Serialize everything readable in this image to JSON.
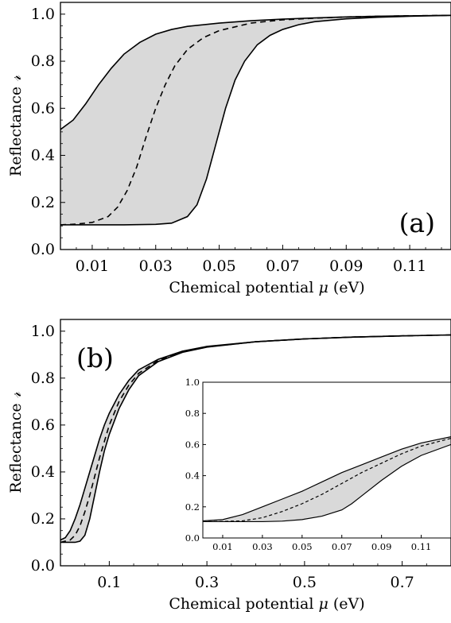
{
  "chart_data": [
    {
      "type": "area",
      "panel_label": "(a)",
      "xlabel": "Chemical potential",
      "xlabel_symbol": "μ",
      "xlabel_unit": "(eV)",
      "ylabel": "Reflectance",
      "ylabel_symbol": "𝓇",
      "xlim": [
        0.0,
        0.123
      ],
      "ylim": [
        0.0,
        1.05
      ],
      "xticks": [
        "0.01",
        "0.03",
        "0.05",
        "0.07",
        "0.09",
        "0.11"
      ],
      "yticks": [
        "0.0",
        "0.2",
        "0.4",
        "0.6",
        "0.8",
        "1.0"
      ],
      "fill_color": "#d9d9d9",
      "series": [
        {
          "style": "solid",
          "x": [
            0.0,
            0.004,
            0.008,
            0.012,
            0.016,
            0.02,
            0.025,
            0.03,
            0.035,
            0.04,
            0.05,
            0.06,
            0.07,
            0.08,
            0.09,
            0.1,
            0.11,
            0.123
          ],
          "y": [
            0.51,
            0.55,
            0.62,
            0.7,
            0.77,
            0.83,
            0.88,
            0.915,
            0.935,
            0.948,
            0.962,
            0.972,
            0.979,
            0.984,
            0.988,
            0.991,
            0.993,
            0.995
          ]
        },
        {
          "style": "dashed",
          "x": [
            0.0,
            0.005,
            0.01,
            0.015,
            0.018,
            0.021,
            0.024,
            0.027,
            0.03,
            0.033,
            0.036,
            0.04,
            0.045,
            0.05,
            0.06,
            0.07,
            0.08,
            0.09,
            0.1,
            0.11,
            0.123
          ],
          "y": [
            0.105,
            0.108,
            0.115,
            0.14,
            0.18,
            0.25,
            0.35,
            0.48,
            0.6,
            0.7,
            0.78,
            0.85,
            0.9,
            0.93,
            0.962,
            0.976,
            0.983,
            0.988,
            0.991,
            0.993,
            0.995
          ]
        },
        {
          "style": "solid",
          "x": [
            0.0,
            0.01,
            0.02,
            0.03,
            0.035,
            0.04,
            0.043,
            0.046,
            0.049,
            0.052,
            0.055,
            0.058,
            0.062,
            0.066,
            0.07,
            0.075,
            0.08,
            0.09,
            0.1,
            0.11,
            0.123
          ],
          "y": [
            0.105,
            0.105,
            0.105,
            0.107,
            0.112,
            0.14,
            0.19,
            0.3,
            0.45,
            0.6,
            0.72,
            0.8,
            0.87,
            0.91,
            0.935,
            0.955,
            0.968,
            0.98,
            0.987,
            0.991,
            0.995
          ]
        }
      ]
    },
    {
      "type": "area",
      "panel_label": "(b)",
      "xlabel": "Chemical potential",
      "xlabel_symbol": "μ",
      "xlabel_unit": "(eV)",
      "ylabel": "Reflectance",
      "ylabel_symbol": "𝓇",
      "xlim": [
        0.0,
        0.8
      ],
      "ylim": [
        0.0,
        1.05
      ],
      "xticks": [
        "0.1",
        "0.3",
        "0.5",
        "0.7"
      ],
      "yticks": [
        "0.0",
        "0.2",
        "0.4",
        "0.6",
        "0.8",
        "1.0"
      ],
      "fill_color": "#d9d9d9",
      "series": [
        {
          "style": "solid",
          "x": [
            0.0,
            0.01,
            0.02,
            0.03,
            0.04,
            0.05,
            0.06,
            0.07,
            0.08,
            0.09,
            0.1,
            0.12,
            0.14,
            0.16,
            0.2,
            0.25,
            0.3,
            0.4,
            0.5,
            0.6,
            0.7,
            0.8
          ],
          "y": [
            0.11,
            0.12,
            0.15,
            0.2,
            0.26,
            0.33,
            0.4,
            0.47,
            0.54,
            0.6,
            0.65,
            0.73,
            0.79,
            0.835,
            0.88,
            0.915,
            0.935,
            0.955,
            0.967,
            0.975,
            0.98,
            0.984
          ]
        },
        {
          "style": "dashed",
          "x": [
            0.0,
            0.02,
            0.03,
            0.04,
            0.05,
            0.06,
            0.07,
            0.08,
            0.09,
            0.1,
            0.12,
            0.14,
            0.16,
            0.2,
            0.25,
            0.3,
            0.4,
            0.5,
            0.6,
            0.7,
            0.8
          ],
          "y": [
            0.1,
            0.11,
            0.13,
            0.17,
            0.23,
            0.3,
            0.38,
            0.46,
            0.53,
            0.6,
            0.7,
            0.77,
            0.82,
            0.875,
            0.912,
            0.933,
            0.955,
            0.967,
            0.975,
            0.98,
            0.984
          ]
        },
        {
          "style": "solid",
          "x": [
            0.0,
            0.02,
            0.03,
            0.04,
            0.05,
            0.06,
            0.07,
            0.08,
            0.09,
            0.1,
            0.12,
            0.14,
            0.16,
            0.2,
            0.25,
            0.3,
            0.4,
            0.5,
            0.6,
            0.7,
            0.8
          ],
          "y": [
            0.1,
            0.1,
            0.1,
            0.105,
            0.13,
            0.2,
            0.3,
            0.4,
            0.49,
            0.56,
            0.67,
            0.75,
            0.81,
            0.87,
            0.91,
            0.932,
            0.955,
            0.967,
            0.975,
            0.98,
            0.984
          ]
        }
      ]
    },
    {
      "type": "area",
      "role": "inset of (b)",
      "xlim": [
        0.0,
        0.125
      ],
      "ylim": [
        0.0,
        1.0
      ],
      "xticks": [
        "0.01",
        "0.03",
        "0.05",
        "0.07",
        "0.09",
        "0.11"
      ],
      "yticks": [
        "0.0",
        "0.2",
        "0.4",
        "0.6",
        "0.8",
        "1.0"
      ],
      "fill_color": "#d9d9d9",
      "series": [
        {
          "style": "solid",
          "x": [
            0.0,
            0.01,
            0.02,
            0.03,
            0.04,
            0.05,
            0.06,
            0.07,
            0.08,
            0.09,
            0.1,
            0.11,
            0.125
          ],
          "y": [
            0.11,
            0.118,
            0.15,
            0.2,
            0.25,
            0.3,
            0.36,
            0.42,
            0.47,
            0.52,
            0.57,
            0.61,
            0.65
          ]
        },
        {
          "style": "dashed",
          "x": [
            0.0,
            0.01,
            0.02,
            0.03,
            0.04,
            0.05,
            0.06,
            0.07,
            0.08,
            0.09,
            0.1,
            0.11,
            0.125
          ],
          "y": [
            0.105,
            0.106,
            0.11,
            0.13,
            0.17,
            0.22,
            0.28,
            0.35,
            0.42,
            0.48,
            0.54,
            0.59,
            0.64
          ]
        },
        {
          "style": "solid",
          "x": [
            0.0,
            0.01,
            0.02,
            0.03,
            0.04,
            0.05,
            0.06,
            0.07,
            0.075,
            0.08,
            0.09,
            0.1,
            0.11,
            0.125
          ],
          "y": [
            0.105,
            0.105,
            0.105,
            0.105,
            0.108,
            0.118,
            0.14,
            0.18,
            0.22,
            0.27,
            0.37,
            0.46,
            0.53,
            0.6
          ]
        }
      ]
    }
  ]
}
